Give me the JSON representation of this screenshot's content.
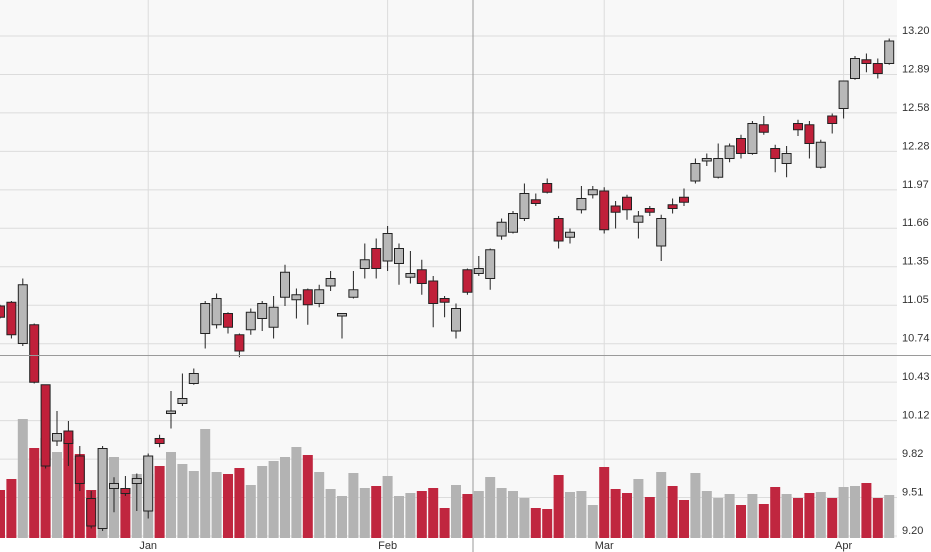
{
  "chart_data": {
    "type": "candlestick",
    "categories": [
      null,
      null,
      null,
      null,
      null,
      null,
      null,
      null,
      null,
      null,
      null,
      null,
      null,
      "Jan",
      null,
      null,
      null,
      null,
      null,
      null,
      null,
      null,
      null,
      null,
      null,
      null,
      null,
      null,
      null,
      null,
      null,
      null,
      null,
      null,
      "Feb",
      null,
      null,
      null,
      null,
      null,
      null,
      null,
      null,
      null,
      null,
      null,
      null,
      null,
      null,
      null,
      null,
      null,
      null,
      "Mar",
      null,
      null,
      null,
      null,
      null,
      null,
      null,
      null,
      null,
      null,
      null,
      null,
      null,
      null,
      null,
      null,
      null,
      null,
      null,
      null,
      "Apr",
      null,
      null,
      null,
      null
    ],
    "open": [
      11.04,
      11.07,
      10.74,
      10.89,
      10.41,
      9.96,
      10.04,
      9.84,
      9.5,
      9.26,
      9.58,
      9.58,
      9.62,
      9.4,
      9.98,
      10.18,
      10.26,
      10.42,
      10.82,
      10.89,
      10.98,
      10.81,
      10.85,
      10.94,
      10.87,
      11.11,
      11.09,
      11.17,
      11.06,
      11.2,
      10.96,
      11.11,
      11.34,
      11.5,
      11.4,
      11.38,
      11.27,
      11.33,
      11.24,
      11.1,
      10.84,
      11.33,
      11.3,
      11.26,
      11.6,
      11.63,
      11.74,
      11.89,
      12.02,
      11.74,
      11.59,
      11.81,
      11.93,
      11.96,
      11.84,
      11.91,
      11.71,
      11.82,
      11.52,
      11.85,
      11.91,
      12.04,
      12.2,
      12.07,
      12.22,
      12.38,
      12.26,
      12.49,
      12.3,
      12.18,
      12.5,
      12.49,
      12.15,
      12.56,
      12.62,
      12.86,
      13.01,
      12.98,
      12.98
    ],
    "high": [
      11.05,
      11.08,
      11.26,
      10.9,
      10.41,
      10.2,
      10.12,
      9.92,
      9.56,
      9.92,
      9.67,
      9.68,
      9.7,
      9.86,
      10.01,
      10.36,
      10.5,
      10.54,
      11.08,
      11.14,
      10.99,
      10.82,
      11.02,
      11.08,
      11.12,
      11.37,
      11.18,
      11.18,
      11.21,
      11.32,
      10.98,
      11.32,
      11.54,
      11.58,
      11.68,
      11.54,
      11.48,
      11.41,
      11.28,
      11.12,
      11.06,
      11.34,
      11.44,
      11.5,
      11.74,
      11.8,
      12.02,
      11.94,
      12.06,
      11.76,
      11.66,
      12.0,
      12.0,
      11.99,
      11.88,
      11.93,
      11.8,
      11.84,
      11.77,
      11.9,
      11.98,
      12.22,
      12.26,
      12.34,
      12.34,
      12.41,
      12.52,
      12.56,
      12.33,
      12.32,
      12.53,
      12.52,
      12.37,
      12.58,
      12.84,
      13.04,
      13.06,
      13.02,
      13.18
    ],
    "low": [
      10.94,
      10.78,
      10.72,
      10.42,
      9.74,
      9.92,
      9.76,
      9.56,
      9.26,
      9.24,
      9.39,
      9.52,
      9.4,
      9.34,
      9.91,
      10.06,
      10.24,
      10.41,
      10.7,
      10.86,
      10.82,
      10.63,
      10.81,
      10.84,
      10.78,
      11.04,
      10.94,
      10.89,
      11.03,
      11.16,
      10.78,
      11.1,
      11.26,
      11.26,
      11.32,
      11.21,
      11.22,
      11.13,
      10.87,
      10.95,
      10.78,
      11.13,
      11.28,
      11.17,
      11.57,
      11.62,
      11.72,
      11.84,
      11.94,
      11.5,
      11.54,
      11.78,
      11.9,
      11.62,
      11.66,
      11.73,
      11.58,
      11.76,
      11.4,
      11.78,
      11.84,
      12.02,
      12.16,
      12.06,
      12.19,
      12.22,
      12.25,
      12.41,
      12.11,
      12.07,
      12.4,
      12.22,
      12.14,
      12.42,
      12.54,
      12.85,
      12.91,
      12.86,
      12.97
    ],
    "close": [
      10.95,
      10.81,
      11.21,
      10.43,
      9.76,
      10.02,
      9.94,
      9.62,
      9.28,
      9.9,
      9.62,
      9.54,
      9.66,
      9.84,
      9.94,
      10.2,
      10.3,
      10.5,
      11.06,
      11.1,
      10.87,
      10.68,
      10.99,
      11.06,
      11.03,
      11.31,
      11.13,
      11.05,
      11.17,
      11.26,
      10.98,
      11.17,
      11.41,
      11.34,
      11.62,
      11.5,
      11.3,
      11.22,
      11.06,
      11.07,
      11.02,
      11.15,
      11.34,
      11.49,
      11.71,
      11.78,
      11.94,
      11.86,
      11.95,
      11.56,
      11.63,
      11.9,
      11.97,
      11.65,
      11.79,
      11.81,
      11.76,
      11.79,
      11.74,
      11.82,
      11.87,
      12.18,
      12.22,
      12.22,
      12.32,
      12.26,
      12.5,
      12.43,
      12.22,
      12.26,
      12.45,
      12.34,
      12.35,
      12.5,
      12.84,
      13.02,
      12.98,
      12.9,
      13.16
    ],
    "volume": [
      48,
      59,
      119,
      90,
      100,
      86,
      99,
      84,
      48,
      90,
      81,
      50,
      64,
      64,
      72,
      86,
      74,
      67,
      109,
      66,
      64,
      70,
      53,
      72,
      77,
      81,
      91,
      83,
      66,
      49,
      42,
      65,
      50,
      52,
      62,
      42,
      45,
      47,
      50,
      30,
      53,
      44,
      47,
      61,
      50,
      47,
      40,
      30,
      29,
      63,
      46,
      47,
      33,
      71,
      49,
      45,
      59,
      41,
      66,
      52,
      38,
      65,
      47,
      40,
      44,
      33,
      44,
      34,
      51,
      44,
      40,
      45,
      46,
      40,
      51,
      52,
      55,
      40,
      43
    ],
    "vlim": [
      0,
      500
    ],
    "ylim": [
      9.2,
      13.2
    ],
    "yticks": [
      {
        "value": 9.2,
        "label": "9.20"
      },
      {
        "value": 9.50769,
        "label": "9.51"
      },
      {
        "value": 9.81538,
        "label": "9.82"
      },
      {
        "value": 10.12308,
        "label": "10.12"
      },
      {
        "value": 10.43077,
        "label": "10.43"
      },
      {
        "value": 10.73846,
        "label": "10.74"
      },
      {
        "value": 11.04615,
        "label": "11.05"
      },
      {
        "value": 11.35385,
        "label": "11.35"
      },
      {
        "value": 11.66154,
        "label": "11.66"
      },
      {
        "value": 11.96923,
        "label": "11.97"
      },
      {
        "value": 12.27692,
        "label": "12.28"
      },
      {
        "value": 12.58462,
        "label": "12.58"
      },
      {
        "value": 12.89231,
        "label": "12.89"
      },
      {
        "value": 13.2,
        "label": "13.20"
      }
    ],
    "up_color": "#b8b8b8",
    "down_color": "#c0203a",
    "up_volume_color": "#b3b3b3",
    "down_volume_color": "#c0263f",
    "grid": true
  }
}
